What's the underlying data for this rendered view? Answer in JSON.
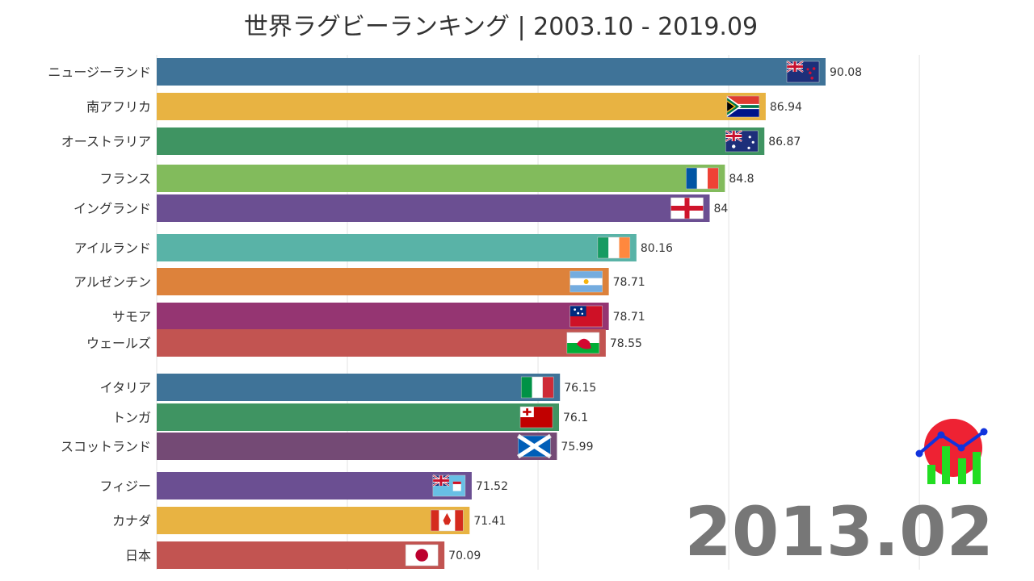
{
  "chart_data": {
    "type": "bar",
    "orientation": "horizontal",
    "title": "世界ラグビーランキング | 2003.10 - 2019.09",
    "period_label": "2013.02",
    "categories": [
      "ニュージーランド",
      "南アフリカ",
      "オーストラリア",
      "フランス",
      "イングランド",
      "アイルランド",
      "アルゼンチン",
      "サモア",
      "ウェールズ",
      "イタリア",
      "トンガ",
      "スコットランド",
      "フィジー",
      "カナダ",
      "日本"
    ],
    "values": [
      90.08,
      86.94,
      86.87,
      84.8,
      84,
      80.16,
      78.71,
      78.71,
      78.55,
      76.15,
      76.1,
      75.99,
      71.52,
      71.41,
      70.09
    ],
    "value_labels": [
      "90.08",
      "86.94",
      "86.87",
      "84.8",
      "84",
      "80.16",
      "78.71",
      "78.71",
      "78.55",
      "76.15",
      "76.1",
      "75.99",
      "71.52",
      "71.41",
      "70.09"
    ],
    "bar_colors": [
      "#3f7398",
      "#e8b342",
      "#3f9462",
      "#82bb5c",
      "#6b4f92",
      "#59b3a7",
      "#dd823b",
      "#953572",
      "#c25451",
      "#3f7398",
      "#3f9462",
      "#744a75",
      "#6b4f92",
      "#e8b342",
      "#c25451"
    ],
    "flags": [
      "nz",
      "za",
      "au",
      "fr",
      "en",
      "ie",
      "ar",
      "ws",
      "wa",
      "it",
      "to",
      "sc",
      "fj",
      "ca",
      "jp"
    ],
    "xlim": [
      55,
      103
    ],
    "grid": true,
    "legend": "none"
  },
  "logo": {
    "circle_color": "#ee2233",
    "bar_color": "#22dd22",
    "line_color": "#1133dd"
  }
}
